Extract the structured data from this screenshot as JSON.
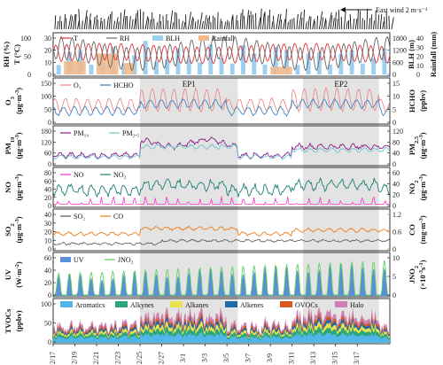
{
  "wind_label": "East wind 2 m·s⁻¹",
  "episodes": [
    {
      "name": "EP1",
      "start": "2/25",
      "end": "3/5"
    },
    {
      "name": "EP2",
      "start": "3/11",
      "end": "3/18"
    }
  ],
  "x_ticks": [
    "2/17",
    "2/19",
    "2/21",
    "2/23",
    "2/25",
    "2/27",
    "3/1",
    "3/3",
    "3/5",
    "3/7",
    "3/9",
    "3/11",
    "3/13",
    "3/15",
    "3/17"
  ],
  "colors": {
    "T": "#e0333a",
    "RH": "#666666",
    "BLH": "#9dd0ef",
    "Rainfall": "#f0b98d",
    "O3": "#f07d7d",
    "HCHO": "#2e7bc0",
    "PM10": "#8b1a8a",
    "PM25": "#6fc7cf",
    "NO": "#ff33cc",
    "NO2": "#1e7f74",
    "SO2": "#555555",
    "CO": "#ec7d1a",
    "UV": "#5b8fd9",
    "JNO2": "#60d060",
    "Aromatics": "#52b7e8",
    "Alkynes": "#2ba678",
    "Alkanes": "#e8e24e",
    "Alkenes": "#1f6aa8",
    "OVOCs": "#d9581f",
    "Halo": "#cf7fb5",
    "episode_shade": "#e3e3e3"
  },
  "chart_data": [
    {
      "type": "line",
      "panel": "meteorology",
      "ylabel": "RH (%)",
      "ylabel2": "T (°C)",
      "yright1": "BLH (m)",
      "yright2": "Rainfall (mm)",
      "left_ticks": [
        0,
        10,
        20,
        30
      ],
      "left_ticks_outer": [
        0,
        50,
        100
      ],
      "right_ticks": [
        0,
        600,
        1200,
        1800
      ],
      "right_ticks_outer": [
        0,
        10,
        20,
        30,
        40
      ],
      "series": [
        {
          "name": "T"
        },
        {
          "name": "RH"
        },
        {
          "name": "BLH"
        },
        {
          "name": "Rainfall"
        }
      ]
    },
    {
      "type": "line",
      "panel": "O3-HCHO",
      "ylabel": "O₃ (μg·m⁻³)",
      "yright": "HCHO (ppbv)",
      "left_ticks": [
        0,
        50,
        100,
        150
      ],
      "right_ticks": [
        0,
        5,
        10,
        15
      ],
      "series": [
        {
          "name": "O₃"
        },
        {
          "name": "HCHO"
        }
      ]
    },
    {
      "type": "line",
      "panel": "PM",
      "ylabel": "PM₁₀ (μg·m⁻³)",
      "yright": "PM₂.₅ (μg·m⁻³)",
      "left_ticks": [
        0,
        60,
        120,
        180
      ],
      "right_ticks": [
        0,
        40,
        80,
        120
      ],
      "series": [
        {
          "name": "PM₁₀"
        },
        {
          "name": "PM₂.₅"
        }
      ]
    },
    {
      "type": "line",
      "panel": "NOx",
      "ylabel": "NO (μg·m⁻³)",
      "yright": "NO₂ (μg·m⁻³)",
      "left_ticks": [
        0,
        20,
        40,
        60,
        80
      ],
      "right_ticks": [
        0,
        20,
        40,
        60
      ],
      "series": [
        {
          "name": "NO"
        },
        {
          "name": "NO₂"
        }
      ]
    },
    {
      "type": "line",
      "panel": "SO2-CO",
      "ylabel": "SO₂ (μg·m⁻³)",
      "yright": "CO (mg·m⁻³)",
      "left_ticks": [
        0,
        10,
        20,
        30,
        40
      ],
      "right_ticks": [
        0,
        0.6,
        1.2
      ],
      "series": [
        {
          "name": "SO₂"
        },
        {
          "name": "CO"
        }
      ]
    },
    {
      "type": "area",
      "panel": "radiation",
      "ylabel": "UV (W·m⁻²)",
      "yright": "JNO₂ (×10⁻³ s⁻¹)",
      "left_ticks": [
        0,
        20,
        40,
        60
      ],
      "right_ticks": [
        0,
        5,
        10
      ],
      "series": [
        {
          "name": "UV"
        },
        {
          "name": "JNO₂"
        }
      ]
    },
    {
      "type": "area",
      "panel": "TVOCs",
      "ylabel": "TVOCs (ppbv)",
      "left_ticks": [
        0,
        50,
        100
      ],
      "series": [
        {
          "name": "Aromatics"
        },
        {
          "name": "Alkynes"
        },
        {
          "name": "Alkanes"
        },
        {
          "name": "Alkenes"
        },
        {
          "name": "OVOCs"
        },
        {
          "name": "Halo"
        }
      ]
    }
  ],
  "text": {
    "p0": {
      "l1": "RH (%)",
      "l2": "T (°C)",
      "r1": "BLH (m)",
      "r2": "Rainfall (mm)",
      "leg": [
        "T",
        "RH",
        "BLH",
        "Rainfall"
      ],
      "lt": [
        "0",
        "10",
        "20",
        "30"
      ],
      "lto": [
        "0",
        "50",
        "100"
      ],
      "rt": [
        "0",
        "600",
        "1200",
        "1800"
      ],
      "rto": [
        "0",
        "10",
        "20",
        "30",
        "40"
      ]
    },
    "p1": {
      "l1": "O",
      "l1sub": "3",
      "l2": "(μg·m",
      "l2sup": "-3",
      "l2c": ")",
      "r1": "HCHO",
      "r2": "(ppbv)",
      "leg": [
        "O₃",
        "HCHO"
      ],
      "lt": [
        "0",
        "50",
        "100",
        "150"
      ],
      "rt": [
        "0",
        "5",
        "10",
        "15"
      ]
    },
    "p2": {
      "l1": "PM",
      "l1sub": "10",
      "l2": "(μg·m",
      "l2sup": "-3",
      "l2c": ")",
      "r1": "PM",
      "r1sub": "2.5",
      "leg": [
        "PM₁₀",
        "PM₂.₅"
      ],
      "lt": [
        "0",
        "60",
        "120",
        "180"
      ],
      "rt": [
        "0",
        "40",
        "80",
        "120"
      ]
    },
    "p3": {
      "l1": "NO",
      "l2": "(μg·m",
      "l2sup": "-3",
      "l2c": ")",
      "r1": "NO",
      "r1sub": "2",
      "leg": [
        "NO",
        "NO₂"
      ],
      "lt": [
        "0",
        "20",
        "40",
        "60",
        "80"
      ],
      "rt": [
        "0",
        "20",
        "40",
        "60"
      ]
    },
    "p4": {
      "l1": "SO",
      "l1sub": "2",
      "l2": "(μg·m",
      "l2sup": "-3",
      "l2c": ")",
      "r1": "CO",
      "r2": "(mg·m",
      "r2sup": "-3",
      "r2c": ")",
      "leg": [
        "SO₂",
        "CO"
      ],
      "lt": [
        "0",
        "10",
        "20",
        "30",
        "40"
      ],
      "rt": [
        "0",
        "0.6",
        "1.2"
      ]
    },
    "p5": {
      "l1": "UV",
      "l2": "(W·m",
      "l2sup": "-2",
      "l2c": ")",
      "r1": "JNO",
      "r1sub": "2",
      "r2": "(×10",
      "r2sup": "-3",
      "r2c": "s",
      "r2sup2": "-1",
      "r2end": ")",
      "leg": [
        "UV",
        "JNO₂"
      ],
      "lt": [
        "0",
        "20",
        "40",
        "60"
      ],
      "rt": [
        "0",
        "5",
        "10"
      ]
    },
    "p6": {
      "l1": "TVOCs",
      "l2": "(ppbv)",
      "leg": [
        "Aromatics",
        "Alkynes",
        "Alkanes",
        "Alkenes",
        "OVOCs",
        "Halo"
      ],
      "lt": [
        "0",
        "50",
        "100"
      ]
    }
  }
}
